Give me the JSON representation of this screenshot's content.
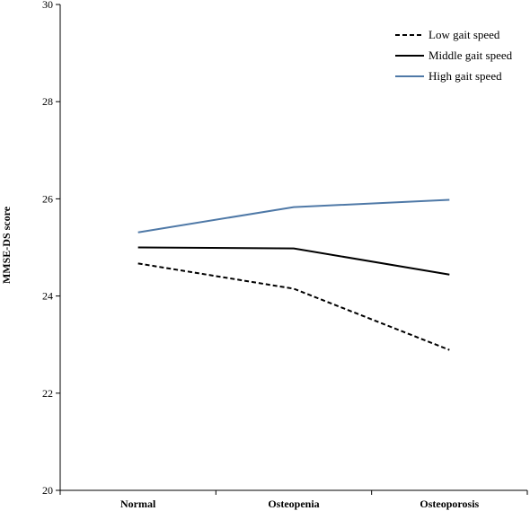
{
  "chart_data": {
    "type": "line",
    "categories": [
      "Normal",
      "Osteopenia",
      "Osteoporosis"
    ],
    "series": [
      {
        "name": "Low gait speed",
        "values": [
          24.67,
          24.15,
          22.89
        ],
        "color": "#000000",
        "style": "dashed"
      },
      {
        "name": "Middle gait speed",
        "values": [
          25.0,
          24.98,
          24.44
        ],
        "color": "#000000",
        "style": "solid"
      },
      {
        "name": "High gait speed",
        "values": [
          25.31,
          25.83,
          25.98
        ],
        "color": "#4f79a7",
        "style": "solid"
      }
    ],
    "title": "",
    "xlabel": "",
    "ylabel": "MMSE-DS score",
    "ylim": [
      20,
      30
    ],
    "yticks": [
      "20",
      "22",
      "24",
      "26",
      "28",
      "30"
    ],
    "grid": false,
    "legend_position": "top-right"
  }
}
